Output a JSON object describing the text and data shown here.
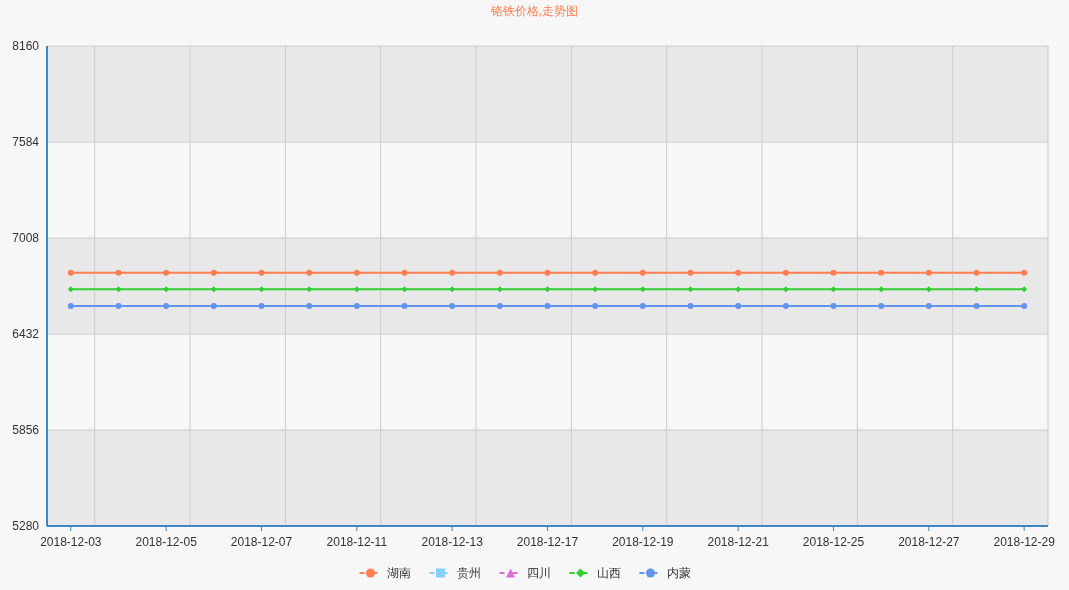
{
  "chart_data": {
    "type": "line",
    "title": "铬铁价格,走势图",
    "categories": [
      "2018-12-03",
      null,
      "2018-12-05",
      null,
      "2018-12-07",
      null,
      "2018-12-11",
      null,
      "2018-12-13",
      null,
      "2018-12-17",
      null,
      "2018-12-19",
      null,
      "2018-12-21",
      null,
      "2018-12-25",
      null,
      "2018-12-27",
      null,
      "2018-12-29"
    ],
    "ylim": [
      5280,
      8160
    ],
    "yticks": [
      5280,
      5856,
      6432,
      7008,
      7584,
      8160
    ],
    "grid": true,
    "legend": "bottom",
    "series": [
      {
        "name": "湖南",
        "color": "#ff7f50",
        "marker": "circle",
        "values": [
          6800,
          6800,
          6800,
          6800,
          6800,
          6800,
          6800,
          6800,
          6800,
          6800,
          6800,
          6800,
          6800,
          6800,
          6800,
          6800,
          6800,
          6800,
          6800,
          6800,
          6800
        ]
      },
      {
        "name": "贵州",
        "color": "#87cefa",
        "marker": "square",
        "values": [
          null,
          null,
          null,
          null,
          null,
          null,
          null,
          null,
          null,
          null,
          null,
          null,
          null,
          null,
          null,
          null,
          null,
          null,
          null,
          null,
          null
        ]
      },
      {
        "name": "四川",
        "color": "#da70d6",
        "marker": "triangle",
        "values": [
          null,
          null,
          null,
          null,
          null,
          null,
          null,
          null,
          null,
          null,
          null,
          null,
          null,
          null,
          null,
          null,
          null,
          null,
          null,
          null,
          null
        ]
      },
      {
        "name": "山西",
        "color": "#32cd32",
        "marker": "diamond",
        "values": [
          6700,
          6700,
          6700,
          6700,
          6700,
          6700,
          6700,
          6700,
          6700,
          6700,
          6700,
          6700,
          6700,
          6700,
          6700,
          6700,
          6700,
          6700,
          6700,
          6700,
          6700
        ]
      },
      {
        "name": "内蒙",
        "color": "#6495ed",
        "marker": "circle",
        "values": [
          6600,
          6600,
          6600,
          6600,
          6600,
          6600,
          6600,
          6600,
          6600,
          6600,
          6600,
          6600,
          6600,
          6600,
          6600,
          6600,
          6600,
          6600,
          6600,
          6600,
          6600
        ]
      }
    ]
  }
}
